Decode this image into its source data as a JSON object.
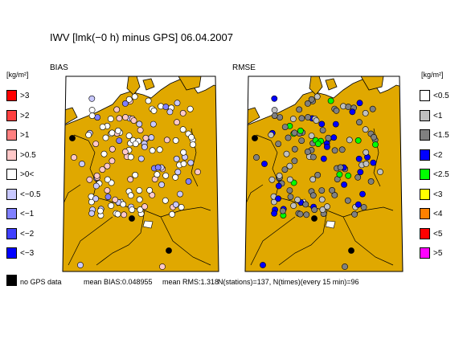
{
  "title": "IWV [lmk(−0 h) minus GPS] 06.04.2007",
  "panels": {
    "left": "BIAS",
    "right": "RMSE"
  },
  "unit_label": "[kg/m²]",
  "bias_legend": [
    {
      "label": ">3",
      "color": "#ff0000"
    },
    {
      "label": ">2",
      "color": "#ff4040"
    },
    {
      "label": ">1",
      "color": "#ff8080"
    },
    {
      "label": ">0.5",
      "color": "#ffc8c8"
    },
    {
      "label": ">0<",
      "color": "#ffffff"
    },
    {
      "label": "<−0.5",
      "color": "#c8c8ff"
    },
    {
      "label": "<−1",
      "color": "#8080ff"
    },
    {
      "label": "<−2",
      "color": "#4040ff"
    },
    {
      "label": "<−3",
      "color": "#0000ff"
    }
  ],
  "rmse_legend": [
    {
      "label": "<0.5",
      "color": "#ffffff"
    },
    {
      "label": "<1",
      "color": "#c0c0c0"
    },
    {
      "label": "<1.5",
      "color": "#808080"
    },
    {
      "label": "<2",
      "color": "#0000ff"
    },
    {
      "label": "<2.5",
      "color": "#00ff00"
    },
    {
      "label": "<3",
      "color": "#ffff00"
    },
    {
      "label": "<4",
      "color": "#ff8000"
    },
    {
      "label": "<5",
      "color": "#ff0000"
    },
    {
      "label": ">5",
      "color": "#ff00ff"
    }
  ],
  "no_data": {
    "label": "no GPS data",
    "color": "#000000"
  },
  "footer": {
    "mean_bias": "mean BIAS:0.048955",
    "mean_rms": "mean RMS:1.318",
    "counts": "N(stations)=137, N(times)(every 15 min)=96"
  },
  "colors": {
    "land": "#e0a800",
    "sea": "#ffffff",
    "border": "#000000"
  }
}
